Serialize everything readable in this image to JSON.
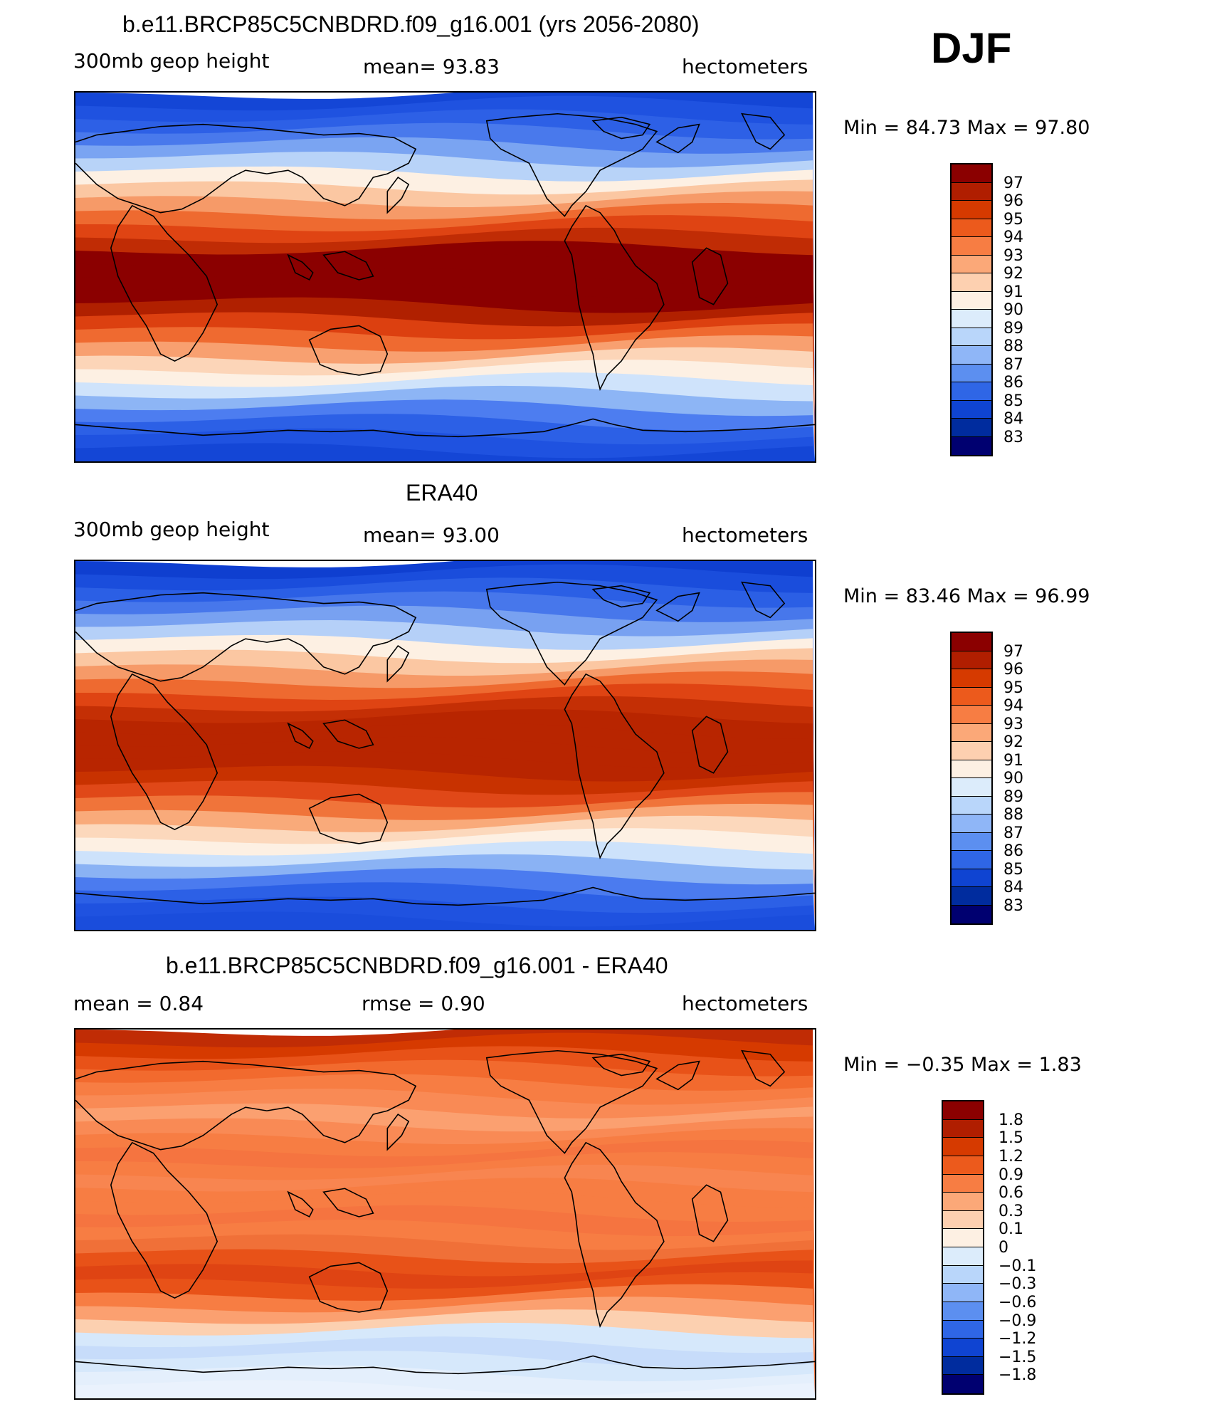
{
  "season": "DJF",
  "panels": [
    {
      "title": "b.e11.BRCP85C5CNBDRD.f09_g16.001 (yrs 2056-2080)",
      "left_label": "300mb geop height",
      "center_label": "mean=   93.83",
      "units": "hectometers",
      "minmax": "Min =   84.73 Max =   97.80",
      "colorbar": {
        "labels": [
          "97",
          "96",
          "95",
          "94",
          "93",
          "92",
          "91",
          "90",
          "89",
          "88",
          "87",
          "86",
          "85",
          "84",
          "83"
        ],
        "colors": [
          "#8b0000",
          "#b01e00",
          "#d63a00",
          "#ec5a1c",
          "#f77d43",
          "#fba878",
          "#fdd0b0",
          "#fdf0e3",
          "#dcecfb",
          "#b9d6fa",
          "#8fb6f7",
          "#5c8ff0",
          "#2f66e6",
          "#0f44d2",
          "#002c9e",
          "#000070"
        ]
      },
      "bands": [
        "#1446d6",
        "#1f52e0",
        "#2d60e6",
        "#4979ec",
        "#7aa4f2",
        "#b8d3f8",
        "#fdf0e3",
        "#fbc7a2",
        "#f69a68",
        "#ee6a30",
        "#df4413",
        "#c02c05",
        "#8b0000",
        "#8b0000",
        "#8b0000",
        "#8b0000",
        "#b02000",
        "#dc4010",
        "#ef6a30",
        "#f8a070",
        "#fcd5b8",
        "#fdf0e3",
        "#cfe3fb",
        "#8db5f5",
        "#4d7df0",
        "#2c60e6",
        "#1f52e0",
        "#1446d6"
      ]
    },
    {
      "title": "ERA40",
      "left_label": "300mb geop height",
      "center_label": "mean=   93.00",
      "units": "hectometers",
      "minmax": "Min =   83.46 Max =   96.99",
      "colorbar": {
        "labels": [
          "97",
          "96",
          "95",
          "94",
          "93",
          "92",
          "91",
          "90",
          "89",
          "88",
          "87",
          "86",
          "85",
          "84",
          "83"
        ],
        "colors": [
          "#8b0000",
          "#b01e00",
          "#d63a00",
          "#ec5a1c",
          "#f77d43",
          "#fba878",
          "#fdd0b0",
          "#fdf0e3",
          "#dcecfb",
          "#b9d6fa",
          "#8fb6f7",
          "#5c8ff0",
          "#2f66e6",
          "#0f44d2",
          "#002c9e",
          "#000070"
        ]
      },
      "bands": [
        "#0f3fd0",
        "#1a4ddc",
        "#2b5fe5",
        "#4777eb",
        "#78a1f1",
        "#b5d0f8",
        "#fdf0e3",
        "#fbc7a2",
        "#f69a68",
        "#ee6a30",
        "#df4413",
        "#c42f05",
        "#b82500",
        "#b82500",
        "#b82500",
        "#b82500",
        "#c83200",
        "#e04818",
        "#f0743a",
        "#f9aa7a",
        "#fcd8bc",
        "#fdf0e3",
        "#cde2fb",
        "#8ab2f4",
        "#4b7bef",
        "#2c60e6",
        "#1f52e0",
        "#1a4ddc"
      ]
    },
    {
      "title": "b.e11.BRCP85C5CNBDRD.f09_g16.001 - ERA40",
      "left_label": "mean =     0.84",
      "center_label": "rmse =     0.90",
      "units": "hectometers",
      "minmax": "Min =   −0.35 Max =     1.83",
      "colorbar": {
        "labels": [
          "1.8",
          "1.5",
          "1.2",
          "0.9",
          "0.6",
          "0.3",
          "0.1",
          "0",
          "−0.1",
          "−0.3",
          "−0.6",
          "−0.9",
          "−1.2",
          "−1.5",
          "−1.8"
        ],
        "colors": [
          "#8b0000",
          "#b01e00",
          "#d63a00",
          "#ec5a1c",
          "#f77d43",
          "#fba878",
          "#fdd0b0",
          "#fdf0e3",
          "#dcecfb",
          "#b9d6fa",
          "#8fb6f7",
          "#5c8ff0",
          "#2f66e6",
          "#0f44d2",
          "#002c9e",
          "#000070"
        ]
      },
      "bands": [
        "#c02c05",
        "#d63a00",
        "#e85218",
        "#f26a2e",
        "#f77d43",
        "#f98a55",
        "#fba070",
        "#f98a55",
        "#f77d43",
        "#f57440",
        "#f77d43",
        "#f88550",
        "#f77d43",
        "#f77d43",
        "#f57440",
        "#f77d43",
        "#f07038",
        "#e85218",
        "#df4413",
        "#e85218",
        "#f77d43",
        "#fba070",
        "#fcd0b0",
        "#d6e8fb",
        "#c7dcfa",
        "#d6e8fb",
        "#e4effc",
        "#eaf2fd"
      ]
    }
  ]
}
